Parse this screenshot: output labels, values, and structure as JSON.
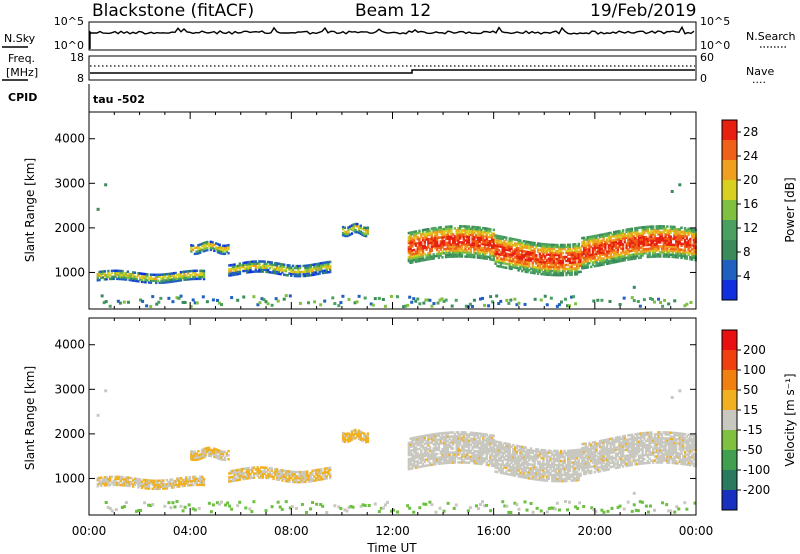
{
  "header": {
    "station": "Blackstone (fitACF)",
    "beam": "Beam 12",
    "date": "19/Feb/2019"
  },
  "strip_top": {
    "left_label": "N.Sky",
    "left_ticks": [
      "10^5",
      "10^0"
    ],
    "right_label": "N.Search",
    "right_ticks": [
      "10^5",
      "10^0"
    ],
    "right_legend": "........"
  },
  "strip_freq": {
    "left_label_1": "Freq.",
    "left_label_2": "[MHz]",
    "left_ticks": [
      "18",
      "8"
    ],
    "right_label": "Nave",
    "right_ticks": [
      "60",
      "0"
    ],
    "right_legend": "····"
  },
  "cpid": {
    "label": "CPID",
    "value": "tau -502"
  },
  "chart_data": [
    {
      "type": "heatmap",
      "name": "power",
      "ylabel": "Slant Range [km]",
      "yticks": [
        "4000",
        "3000",
        "2000",
        "1000"
      ],
      "ylim": [
        180,
        4600
      ],
      "xlim_hours": [
        0,
        24
      ],
      "colorbar": {
        "label": "Power [dB]",
        "ticks": [
          "28",
          "24",
          "20",
          "16",
          "12",
          "8",
          "4"
        ],
        "range": [
          0,
          30
        ],
        "colors": [
          "#1030e0",
          "#2060c0",
          "#3a8a5a",
          "#4aa060",
          "#80c040",
          "#d8d020",
          "#f0a020",
          "#f06018",
          "#e82010"
        ]
      },
      "regions": [
        {
          "t0": 0.3,
          "t1": 4.5,
          "r0": 750,
          "r1": 1050,
          "level": "mixed-low"
        },
        {
          "t0": 4.0,
          "t1": 5.5,
          "r0": 1400,
          "r1": 1700,
          "level": "mixed-low"
        },
        {
          "t0": 5.5,
          "t1": 9.5,
          "r0": 900,
          "r1": 1250,
          "level": "mixed-low"
        },
        {
          "t0": 10.0,
          "t1": 11.0,
          "r0": 1800,
          "r1": 2100,
          "level": "low"
        },
        {
          "t0": 12.6,
          "t1": 24,
          "r0": 1100,
          "r1": 2400,
          "level": "high"
        }
      ]
    },
    {
      "type": "heatmap",
      "name": "velocity",
      "ylabel": "Slant Range [km]",
      "yticks": [
        "4000",
        "3000",
        "2000",
        "1000"
      ],
      "ylim": [
        180,
        4600
      ],
      "xlim_hours": [
        0,
        24
      ],
      "xticks": [
        "00:00",
        "04:00",
        "08:00",
        "12:00",
        "16:00",
        "20:00",
        "00:00"
      ],
      "xlabel": "Time UT",
      "colorbar": {
        "label": "Velocity [m s⁻¹]",
        "ticks": [
          "200",
          "100",
          "50",
          "15",
          "-15",
          "-50",
          "-100",
          "-200"
        ],
        "colors": [
          "#1830c0",
          "#2a7a60",
          "#40a050",
          "#80c040",
          "#c8c8c0",
          "#f0b020",
          "#f08010",
          "#f04010",
          "#e81010"
        ]
      },
      "regions": [
        {
          "t0": 0.3,
          "t1": 4.5,
          "r0": 750,
          "r1": 1050,
          "level": "gray-orange"
        },
        {
          "t0": 4.0,
          "t1": 5.5,
          "r0": 1400,
          "r1": 1700,
          "level": "gray-orange"
        },
        {
          "t0": 5.5,
          "t1": 9.5,
          "r0": 900,
          "r1": 1250,
          "level": "orange-gray"
        },
        {
          "t0": 10.0,
          "t1": 11.0,
          "r0": 1800,
          "r1": 2100,
          "level": "orange"
        },
        {
          "t0": 12.6,
          "t1": 24,
          "r0": 1100,
          "r1": 2400,
          "level": "gray"
        }
      ]
    }
  ]
}
